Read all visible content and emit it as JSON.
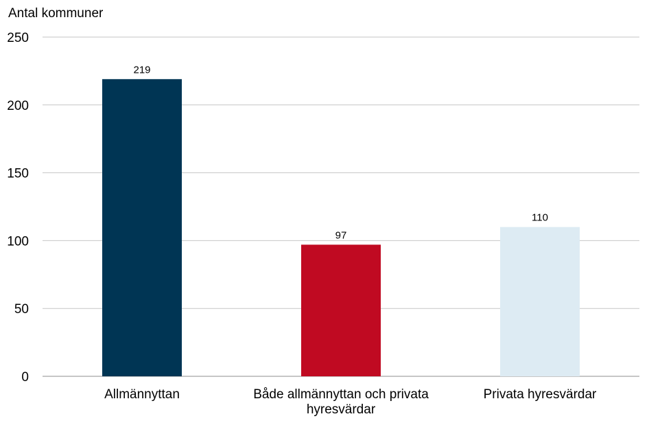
{
  "chart_data": {
    "type": "bar",
    "title": "",
    "xlabel": "",
    "ylabel": "Antal kommuner",
    "ylim": [
      0,
      250
    ],
    "yticks": [
      0,
      50,
      100,
      150,
      200,
      250
    ],
    "grid": true,
    "categories": [
      [
        "Allmännyttan"
      ],
      [
        "Både allmännyttan och privata",
        "hyresvärdar"
      ],
      [
        "Privata hyresvärdar"
      ]
    ],
    "values": [
      219,
      97,
      110
    ],
    "data_labels": [
      "219",
      "97",
      "110"
    ],
    "colors": [
      "#003554",
      "#c00a22",
      "#ddebf3"
    ]
  }
}
